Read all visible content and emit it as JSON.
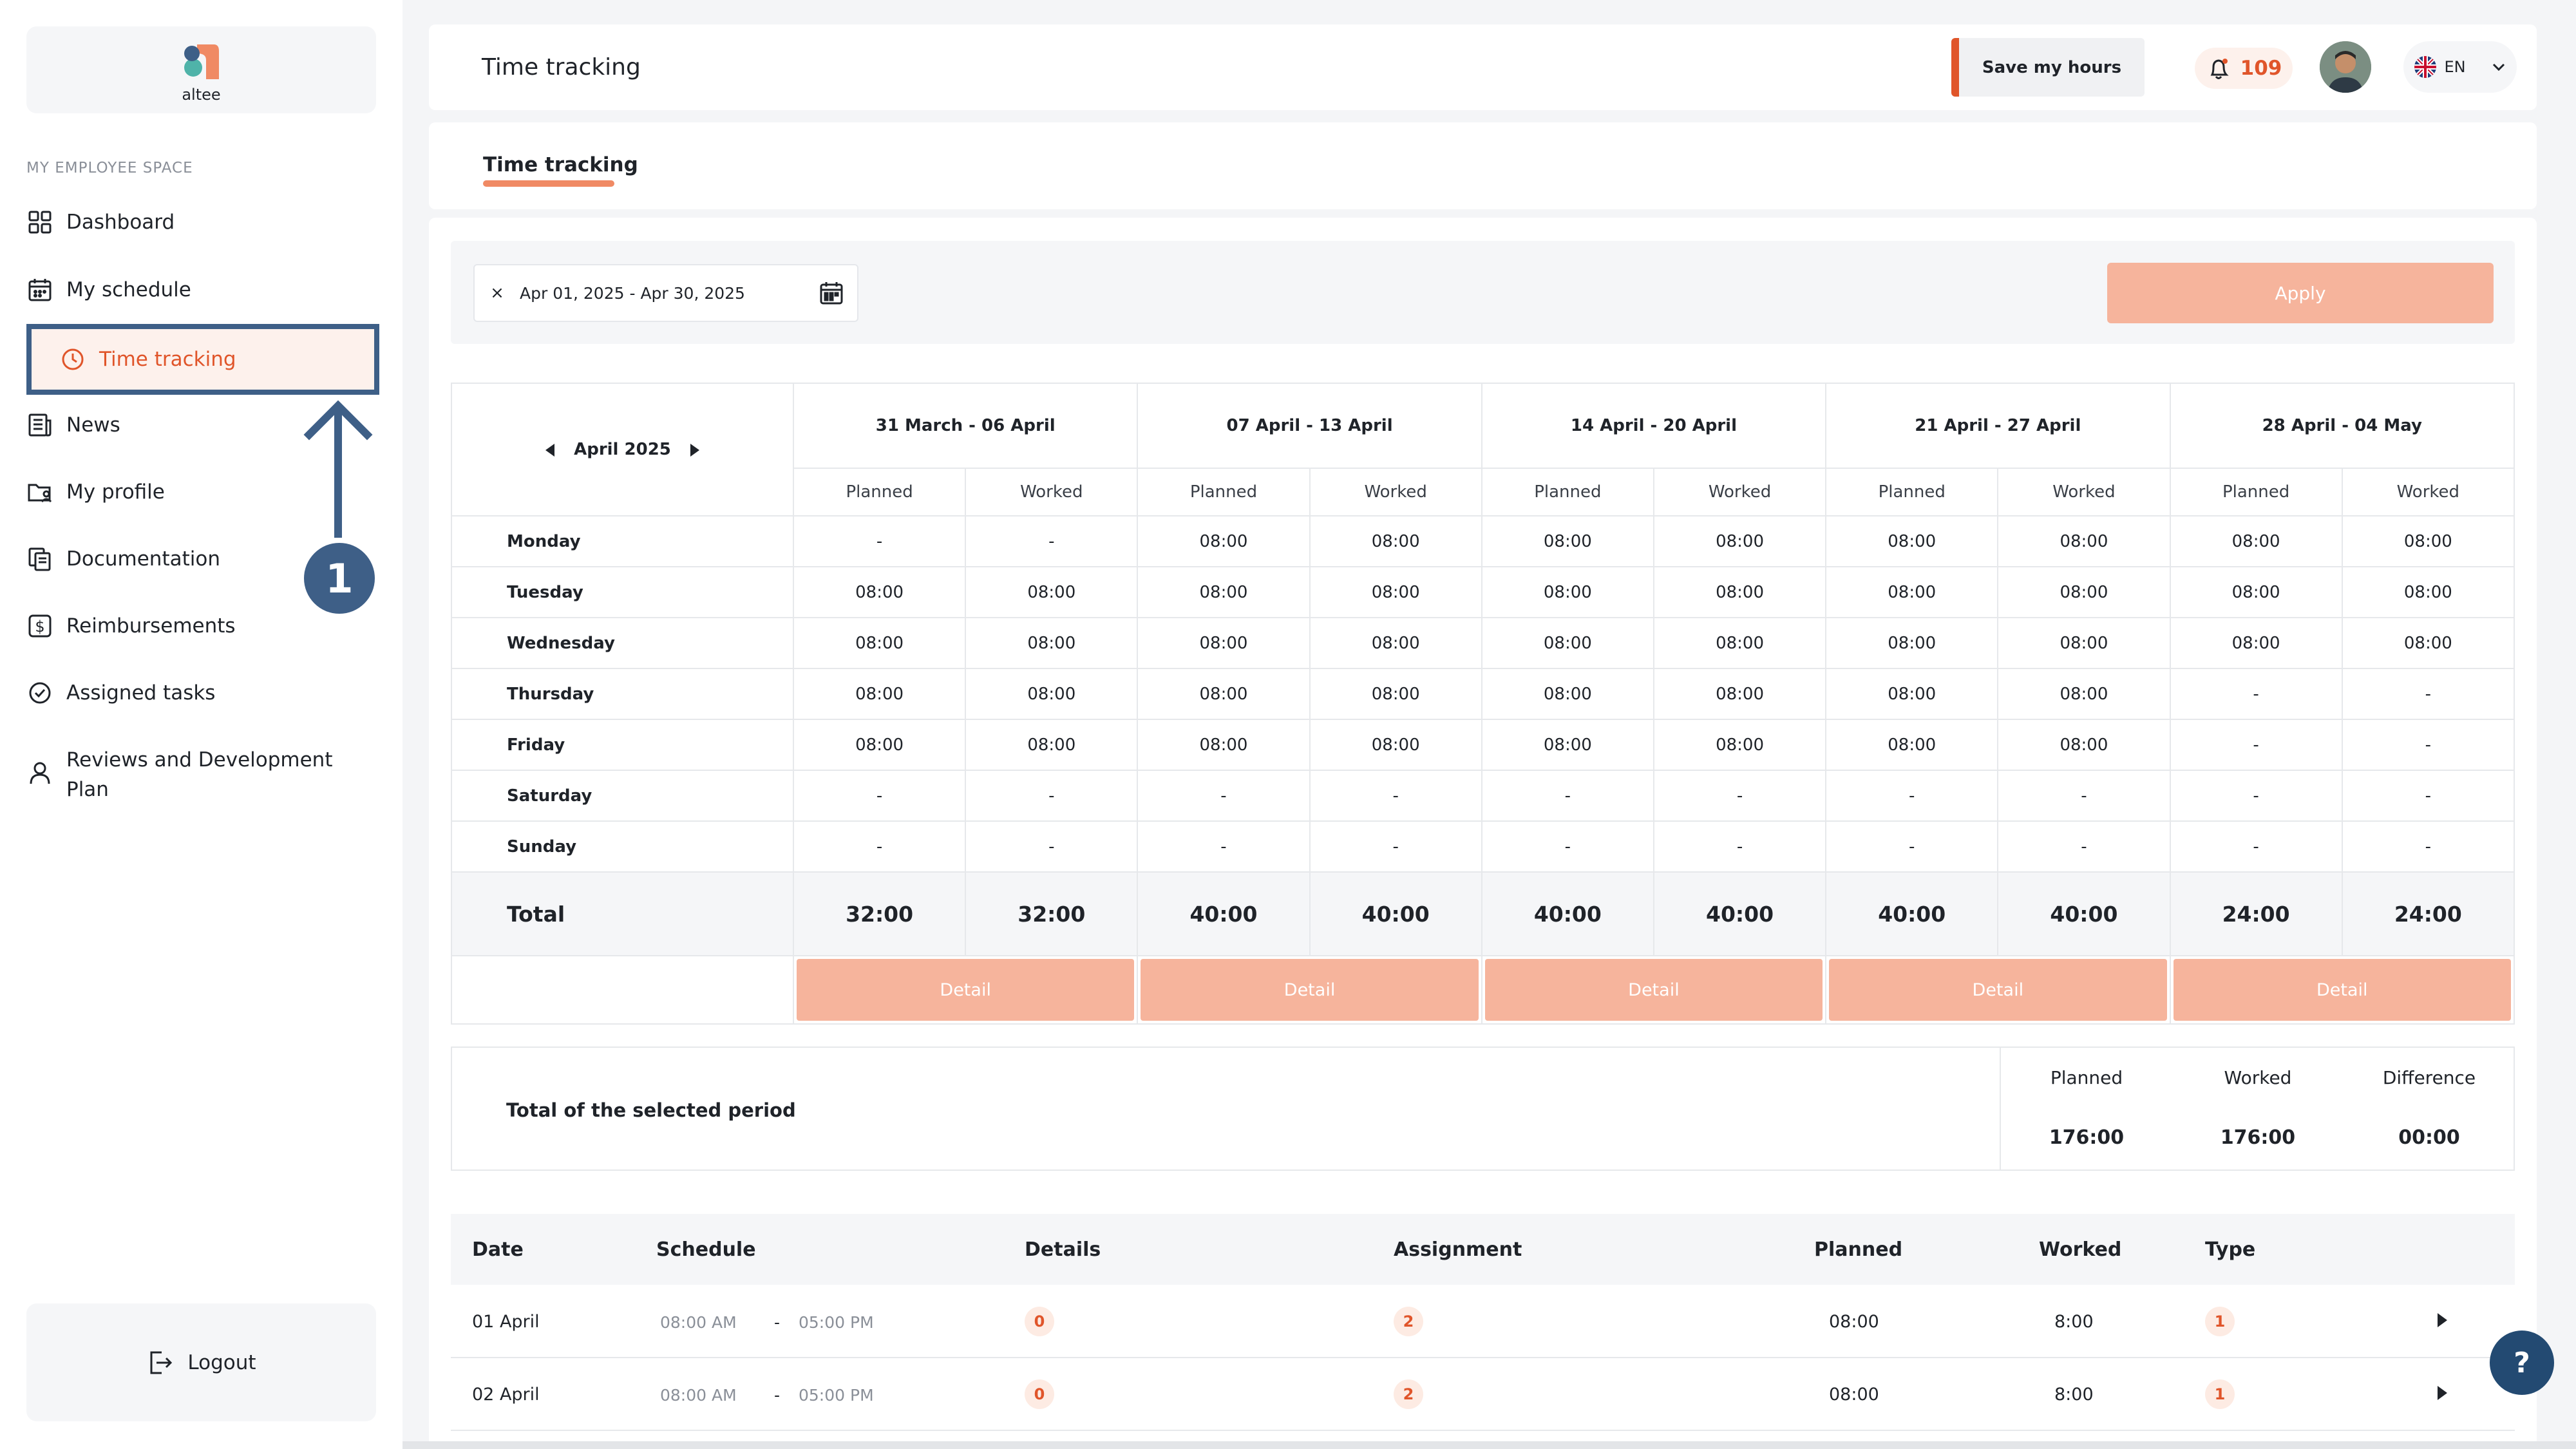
{
  "app": {
    "logo_text": "altee"
  },
  "sidebar": {
    "section_label": "MY EMPLOYEE SPACE",
    "items": [
      {
        "label": "Dashboard",
        "icon": "grid-icon"
      },
      {
        "label": "My schedule",
        "icon": "calendar-icon"
      },
      {
        "label": "Time tracking",
        "icon": "clock-icon",
        "active": true
      },
      {
        "label": "News",
        "icon": "newspaper-icon"
      },
      {
        "label": "My profile",
        "icon": "folder-user-icon"
      },
      {
        "label": "Documentation",
        "icon": "documents-icon"
      },
      {
        "label": "Reimbursements",
        "icon": "dollar-icon"
      },
      {
        "label": "Assigned tasks",
        "icon": "check-circle-icon"
      },
      {
        "label": "Reviews and Development Plan",
        "icon": "user-icon"
      }
    ],
    "logout": "Logout"
  },
  "annotation": {
    "step": "1"
  },
  "header": {
    "title": "Time tracking",
    "save_button": "Save my hours",
    "notification_count": "109",
    "language": "EN"
  },
  "tabs": [
    {
      "label": "Time tracking",
      "active": true
    }
  ],
  "filter": {
    "date_range": "Apr 01, 2025 - Apr 30, 2025",
    "clear_symbol": "×",
    "apply_label": "Apply"
  },
  "week_table": {
    "month": "April 2025",
    "planned_label": "Planned",
    "worked_label": "Worked",
    "weeks": [
      {
        "label": "31 March - 06 April",
        "planned_total": "32:00",
        "worked_total": "32:00",
        "days": [
          [
            "-",
            "-"
          ],
          [
            "08:00",
            "08:00"
          ],
          [
            "08:00",
            "08:00"
          ],
          [
            "08:00",
            "08:00"
          ],
          [
            "08:00",
            "08:00"
          ],
          [
            "-",
            "-"
          ],
          [
            "-",
            "-"
          ]
        ]
      },
      {
        "label": "07 April - 13 April",
        "planned_total": "40:00",
        "worked_total": "40:00",
        "days": [
          [
            "08:00",
            "08:00"
          ],
          [
            "08:00",
            "08:00"
          ],
          [
            "08:00",
            "08:00"
          ],
          [
            "08:00",
            "08:00"
          ],
          [
            "08:00",
            "08:00"
          ],
          [
            "-",
            "-"
          ],
          [
            "-",
            "-"
          ]
        ]
      },
      {
        "label": "14 April - 20 April",
        "planned_total": "40:00",
        "worked_total": "40:00",
        "days": [
          [
            "08:00",
            "08:00"
          ],
          [
            "08:00",
            "08:00"
          ],
          [
            "08:00",
            "08:00"
          ],
          [
            "08:00",
            "08:00"
          ],
          [
            "08:00",
            "08:00"
          ],
          [
            "-",
            "-"
          ],
          [
            "-",
            "-"
          ]
        ]
      },
      {
        "label": "21 April - 27 April",
        "planned_total": "40:00",
        "worked_total": "40:00",
        "days": [
          [
            "08:00",
            "08:00"
          ],
          [
            "08:00",
            "08:00"
          ],
          [
            "08:00",
            "08:00"
          ],
          [
            "08:00",
            "08:00"
          ],
          [
            "08:00",
            "08:00"
          ],
          [
            "-",
            "-"
          ],
          [
            "-",
            "-"
          ]
        ]
      },
      {
        "label": "28 April - 04 May",
        "planned_total": "24:00",
        "worked_total": "24:00",
        "days": [
          [
            "08:00",
            "08:00"
          ],
          [
            "08:00",
            "08:00"
          ],
          [
            "08:00",
            "08:00"
          ],
          [
            "-",
            "-"
          ],
          [
            "-",
            "-"
          ],
          [
            "-",
            "-"
          ],
          [
            "-",
            "-"
          ]
        ]
      }
    ],
    "days": [
      "Monday",
      "Tuesday",
      "Wednesday",
      "Thursday",
      "Friday",
      "Saturday",
      "Sunday"
    ],
    "total_label": "Total",
    "detail_label": "Detail"
  },
  "summary": {
    "label": "Total of the selected period",
    "planned_label": "Planned",
    "planned_value": "176:00",
    "worked_label": "Worked",
    "worked_value": "176:00",
    "difference_label": "Difference",
    "difference_value": "00:00"
  },
  "daily_list": {
    "headers": [
      "Date",
      "Schedule",
      "Details",
      "Assignment",
      "Planned",
      "Worked",
      "Type"
    ],
    "rows": [
      {
        "date": "01 April",
        "start": "08:00 AM",
        "sep": "-",
        "end": "05:00 PM",
        "details": "0",
        "assignment": "2",
        "planned": "08:00",
        "worked": "8:00",
        "type": "1"
      },
      {
        "date": "02 April",
        "start": "08:00 AM",
        "sep": "-",
        "end": "05:00 PM",
        "details": "0",
        "assignment": "2",
        "planned": "08:00",
        "worked": "8:00",
        "type": "1"
      }
    ]
  },
  "help": "?",
  "colors": {
    "accent": "#e0552a",
    "accent_light": "#f6b49c",
    "annotation": "#3e5f87"
  }
}
